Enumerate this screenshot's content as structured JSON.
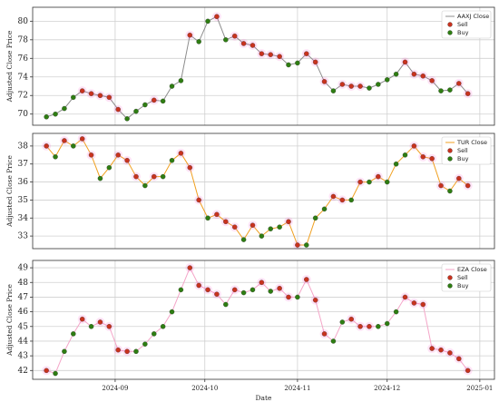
{
  "chart_data": [
    {
      "type": "line",
      "ylabel": "Adjusted Close Price",
      "legend": "upper right",
      "x": [
        8,
        11,
        14,
        17,
        20,
        23,
        26,
        29,
        32,
        35,
        38,
        41,
        44,
        47,
        50,
        53,
        56,
        59,
        62,
        65,
        68,
        71,
        74,
        77,
        80,
        83,
        86,
        89,
        92,
        95,
        98,
        101,
        104,
        107,
        110,
        113,
        116,
        119,
        122,
        125,
        128,
        131,
        134,
        137,
        140,
        143,
        146,
        149
      ],
      "xlim": [
        3.4,
        157.9
      ],
      "ylim": [
        68.8,
        81.5
      ],
      "yticks": [
        70,
        72,
        74,
        76,
        78,
        80
      ],
      "grid": true,
      "series": [
        {
          "name": "AAXJ Close",
          "color": "#8c8c8c",
          "values": [
            69.7,
            70.0,
            70.6,
            71.8,
            72.5,
            72.2,
            72.0,
            71.8,
            70.5,
            69.5,
            70.3,
            71.0,
            71.5,
            71.4,
            73.0,
            73.6,
            78.5,
            77.8,
            80.0,
            80.5,
            78.0,
            78.4,
            77.6,
            77.4,
            76.5,
            76.4,
            76.2,
            75.3,
            75.5,
            76.5,
            75.6,
            73.5,
            72.5,
            73.2,
            73.0,
            73.0,
            72.8,
            73.2,
            73.7,
            74.3,
            75.6,
            74.3,
            74.1,
            73.6,
            72.5,
            72.6,
            73.3,
            72.2
          ]
        },
        {
          "name": "Sell",
          "color": "#c8321e",
          "values": [
            null,
            null,
            null,
            null,
            72.5,
            72.2,
            72.0,
            71.8,
            70.5,
            null,
            null,
            null,
            71.5,
            null,
            null,
            null,
            78.5,
            null,
            null,
            80.5,
            null,
            78.4,
            77.6,
            77.4,
            76.5,
            76.4,
            76.2,
            null,
            null,
            76.5,
            75.6,
            73.5,
            null,
            73.2,
            73.0,
            73.0,
            null,
            null,
            null,
            null,
            75.6,
            74.3,
            74.1,
            73.6,
            null,
            null,
            73.3,
            72.2
          ]
        },
        {
          "name": "Buy",
          "color": "#2e7d12",
          "values": [
            69.7,
            70.0,
            70.6,
            71.8,
            null,
            null,
            null,
            null,
            null,
            69.5,
            70.3,
            71.0,
            null,
            71.4,
            73.0,
            73.6,
            null,
            77.8,
            80.0,
            null,
            78.0,
            null,
            null,
            null,
            null,
            null,
            null,
            75.3,
            75.5,
            null,
            null,
            null,
            72.5,
            null,
            null,
            null,
            72.8,
            73.2,
            73.7,
            74.3,
            null,
            null,
            null,
            null,
            72.5,
            72.6,
            null,
            null
          ]
        }
      ]
    },
    {
      "type": "line",
      "ylabel": "Adjusted Close Price",
      "legend": "upper right",
      "x": [
        8,
        11,
        14,
        17,
        20,
        23,
        26,
        29,
        32,
        35,
        38,
        41,
        44,
        47,
        50,
        53,
        56,
        59,
        62,
        65,
        68,
        71,
        74,
        77,
        80,
        83,
        86,
        89,
        92,
        95,
        98,
        101,
        104,
        107,
        110,
        113,
        116,
        119,
        122,
        125,
        128,
        131,
        134,
        137,
        140,
        143,
        146,
        149
      ],
      "xlim": [
        3.4,
        157.9
      ],
      "ylim": [
        32.3,
        38.7
      ],
      "yticks": [
        33,
        34,
        35,
        36,
        37,
        38
      ],
      "grid": true,
      "series": [
        {
          "name": "TUR Close",
          "color": "#f0a020",
          "values": [
            38.0,
            37.4,
            38.3,
            38.0,
            38.4,
            37.5,
            36.2,
            36.8,
            37.5,
            37.2,
            36.3,
            35.8,
            36.3,
            36.3,
            37.2,
            37.6,
            36.8,
            35.0,
            34.0,
            34.2,
            33.8,
            33.5,
            32.8,
            33.6,
            33.0,
            33.4,
            33.5,
            33.8,
            32.5,
            32.5,
            34.0,
            34.5,
            35.2,
            35.0,
            35.0,
            36.0,
            36.0,
            36.3,
            36.0,
            37.0,
            37.5,
            38.0,
            37.4,
            37.3,
            35.8,
            35.5,
            36.2,
            35.8
          ]
        },
        {
          "name": "Sell",
          "color": "#c8321e",
          "values": [
            38.0,
            null,
            38.3,
            null,
            38.4,
            37.5,
            null,
            null,
            37.5,
            37.2,
            36.3,
            null,
            36.3,
            null,
            null,
            37.6,
            36.8,
            35.0,
            null,
            34.2,
            33.8,
            33.5,
            null,
            33.6,
            null,
            null,
            null,
            33.8,
            32.5,
            null,
            null,
            null,
            35.2,
            35.0,
            null,
            36.0,
            null,
            36.3,
            null,
            null,
            null,
            38.0,
            37.4,
            37.3,
            35.8,
            null,
            36.2,
            35.8
          ]
        },
        {
          "name": "Buy",
          "color": "#2e7d12",
          "values": [
            null,
            37.4,
            null,
            38.0,
            null,
            null,
            36.2,
            36.8,
            null,
            null,
            null,
            35.8,
            null,
            36.3,
            37.2,
            null,
            null,
            null,
            34.0,
            null,
            null,
            null,
            32.8,
            null,
            33.0,
            33.4,
            33.5,
            null,
            null,
            32.5,
            34.0,
            34.5,
            null,
            null,
            35.0,
            null,
            36.0,
            null,
            36.0,
            37.0,
            37.5,
            null,
            null,
            null,
            null,
            35.5,
            null,
            null
          ]
        }
      ]
    },
    {
      "type": "line",
      "ylabel": "Adjusted Close Price",
      "xlabel": "Date",
      "legend": "upper right",
      "x": [
        8,
        11,
        14,
        17,
        20,
        23,
        26,
        29,
        32,
        35,
        38,
        41,
        44,
        47,
        50,
        53,
        56,
        59,
        62,
        65,
        68,
        71,
        74,
        77,
        80,
        83,
        86,
        89,
        92,
        95,
        98,
        101,
        104,
        107,
        110,
        113,
        116,
        119,
        122,
        125,
        128,
        131,
        134,
        137,
        140,
        143,
        146,
        149
      ],
      "xlim": [
        3.4,
        157.9
      ],
      "ylim": [
        41.4,
        49.5
      ],
      "yticks": [
        42,
        43,
        44,
        45,
        46,
        47,
        48,
        49
      ],
      "grid": true,
      "xticks": [
        {
          "value": 31,
          "label": "2024-09"
        },
        {
          "value": 61,
          "label": "2024-10"
        },
        {
          "value": 92,
          "label": "2024-11"
        },
        {
          "value": 122,
          "label": "2024-12"
        },
        {
          "value": 153,
          "label": "2025-01"
        }
      ],
      "series": [
        {
          "name": "EZA Close",
          "color": "#f4a6c8",
          "values": [
            42.0,
            41.8,
            43.3,
            44.5,
            45.5,
            45.0,
            45.3,
            45.0,
            43.4,
            43.3,
            43.3,
            43.8,
            44.5,
            45.0,
            46.0,
            47.5,
            49.0,
            47.8,
            47.5,
            47.2,
            46.5,
            47.5,
            47.3,
            47.5,
            48.0,
            47.4,
            47.6,
            47.0,
            47.0,
            48.2,
            46.8,
            44.5,
            44.0,
            45.3,
            45.5,
            45.0,
            45.0,
            45.0,
            45.2,
            46.0,
            47.0,
            46.6,
            46.5,
            43.5,
            43.4,
            43.2,
            42.8,
            42.0
          ]
        },
        {
          "name": "Sell",
          "color": "#c8321e",
          "values": [
            42.0,
            null,
            null,
            null,
            45.5,
            null,
            45.3,
            45.0,
            43.4,
            43.3,
            null,
            null,
            null,
            null,
            null,
            null,
            49.0,
            47.8,
            47.5,
            47.2,
            null,
            47.5,
            null,
            null,
            48.0,
            null,
            47.6,
            47.0,
            null,
            48.2,
            46.8,
            44.5,
            null,
            null,
            45.5,
            45.0,
            45.0,
            null,
            null,
            null,
            47.0,
            46.6,
            46.5,
            43.5,
            43.4,
            43.2,
            42.8,
            42.0
          ]
        },
        {
          "name": "Buy",
          "color": "#2e7d12",
          "values": [
            null,
            41.8,
            43.3,
            44.5,
            null,
            45.0,
            null,
            null,
            null,
            null,
            43.3,
            43.8,
            44.5,
            45.0,
            46.0,
            47.5,
            null,
            null,
            null,
            null,
            46.5,
            null,
            47.3,
            47.5,
            null,
            47.4,
            null,
            null,
            47.0,
            null,
            null,
            null,
            44.0,
            45.3,
            null,
            null,
            null,
            45.0,
            45.2,
            46.0,
            null,
            null,
            null,
            null,
            null,
            null,
            null,
            null
          ]
        }
      ]
    }
  ]
}
